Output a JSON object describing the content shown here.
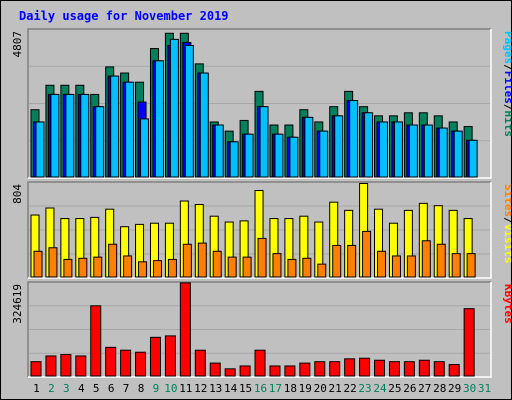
{
  "title": "Daily usage for November 2019",
  "colors": {
    "title": "#0000ff",
    "hits": "#00805c",
    "files": "#0000ff",
    "pages": "#00c0ff",
    "visits": "#ffff00",
    "sites": "#ff8000",
    "kbytes": "#ff0000",
    "weekend": "#00805c",
    "weekday": "#000000",
    "background": "#c0c0c0"
  },
  "chart_data": [
    {
      "type": "bar",
      "panel": "hits-files-pages",
      "categories": [
        "1",
        "2",
        "3",
        "4",
        "5",
        "6",
        "7",
        "8",
        "9",
        "10",
        "11",
        "12",
        "13",
        "14",
        "15",
        "16",
        "17",
        "18",
        "19",
        "20",
        "21",
        "22",
        "23",
        "24",
        "25",
        "26",
        "27",
        "28",
        "29",
        "30",
        "31"
      ],
      "weekend_days": [
        "2",
        "3",
        "9",
        "10",
        "16",
        "17",
        "23",
        "24",
        "30",
        "31"
      ],
      "ymax_label": "4807",
      "ylim": [
        0,
        4807
      ],
      "legend": [
        {
          "name": "Hits",
          "color": "#00805c"
        },
        {
          "name": "Files",
          "color": "#0000ff"
        },
        {
          "name": "Pages",
          "color": "#00c0ff"
        }
      ],
      "series": [
        {
          "name": "Hits",
          "values": [
            2200,
            3000,
            3000,
            3000,
            2700,
            3600,
            3400,
            3100,
            4200,
            4700,
            4700,
            3700,
            1800,
            1500,
            1850,
            2800,
            1700,
            1700,
            2200,
            1800,
            2300,
            2800,
            2300,
            2000,
            2000,
            2100,
            2100,
            2000,
            1800,
            1650,
            0
          ]
        },
        {
          "name": "Files",
          "values": [
            1800,
            2700,
            2700,
            2700,
            2300,
            3300,
            3100,
            2450,
            3800,
            4300,
            4400,
            3400,
            1700,
            1150,
            1400,
            2300,
            1400,
            1300,
            1950,
            1500,
            2000,
            2500,
            2100,
            1800,
            1800,
            1700,
            1700,
            1600,
            1500,
            1200,
            0
          ]
        },
        {
          "name": "Pages",
          "values": [
            1800,
            2700,
            2700,
            2700,
            2300,
            3300,
            3100,
            1900,
            3800,
            4500,
            4300,
            3400,
            1700,
            1150,
            1400,
            2300,
            1400,
            1300,
            1950,
            1500,
            2000,
            2500,
            2100,
            1800,
            1800,
            1700,
            1700,
            1600,
            1500,
            1200,
            0
          ]
        }
      ]
    },
    {
      "type": "bar",
      "panel": "visits-sites",
      "categories": [
        "1",
        "2",
        "3",
        "4",
        "5",
        "6",
        "7",
        "8",
        "9",
        "10",
        "11",
        "12",
        "13",
        "14",
        "15",
        "16",
        "17",
        "18",
        "19",
        "20",
        "21",
        "22",
        "23",
        "24",
        "25",
        "26",
        "27",
        "28",
        "29",
        "30",
        "31"
      ],
      "ymax_label": "804",
      "ylim": [
        0,
        804
      ],
      "legend": [
        {
          "name": "Visits",
          "color": "#ffff00"
        },
        {
          "name": "Sites",
          "color": "#ff8000"
        }
      ],
      "series": [
        {
          "name": "Visits",
          "values": [
            530,
            590,
            500,
            500,
            510,
            580,
            430,
            450,
            460,
            460,
            650,
            620,
            520,
            470,
            480,
            740,
            500,
            500,
            520,
            470,
            640,
            570,
            800,
            580,
            460,
            570,
            630,
            610,
            570,
            500,
            0
          ]
        },
        {
          "name": "Sites",
          "values": [
            220,
            250,
            150,
            160,
            170,
            280,
            180,
            130,
            140,
            150,
            280,
            290,
            220,
            170,
            170,
            330,
            200,
            150,
            160,
            110,
            270,
            270,
            390,
            220,
            180,
            180,
            310,
            280,
            200,
            200,
            0
          ]
        }
      ]
    },
    {
      "type": "bar",
      "panel": "kbytes",
      "categories": [
        "1",
        "2",
        "3",
        "4",
        "5",
        "6",
        "7",
        "8",
        "9",
        "10",
        "11",
        "12",
        "13",
        "14",
        "15",
        "16",
        "17",
        "18",
        "19",
        "20",
        "21",
        "22",
        "23",
        "24",
        "25",
        "26",
        "27",
        "28",
        "29",
        "30",
        "31"
      ],
      "ymax_label": "324619",
      "ylim": [
        0,
        324619
      ],
      "legend": [
        {
          "name": "KBytes",
          "color": "#ff0000"
        }
      ],
      "series": [
        {
          "name": "KBytes",
          "values": [
            50000,
            70000,
            75000,
            70000,
            245000,
            100000,
            90000,
            83000,
            135000,
            140000,
            325000,
            90000,
            45000,
            25000,
            35000,
            90000,
            35000,
            35000,
            45000,
            50000,
            50000,
            60000,
            62000,
            55000,
            50000,
            50000,
            55000,
            50000,
            40000,
            235000,
            0
          ]
        }
      ]
    }
  ]
}
